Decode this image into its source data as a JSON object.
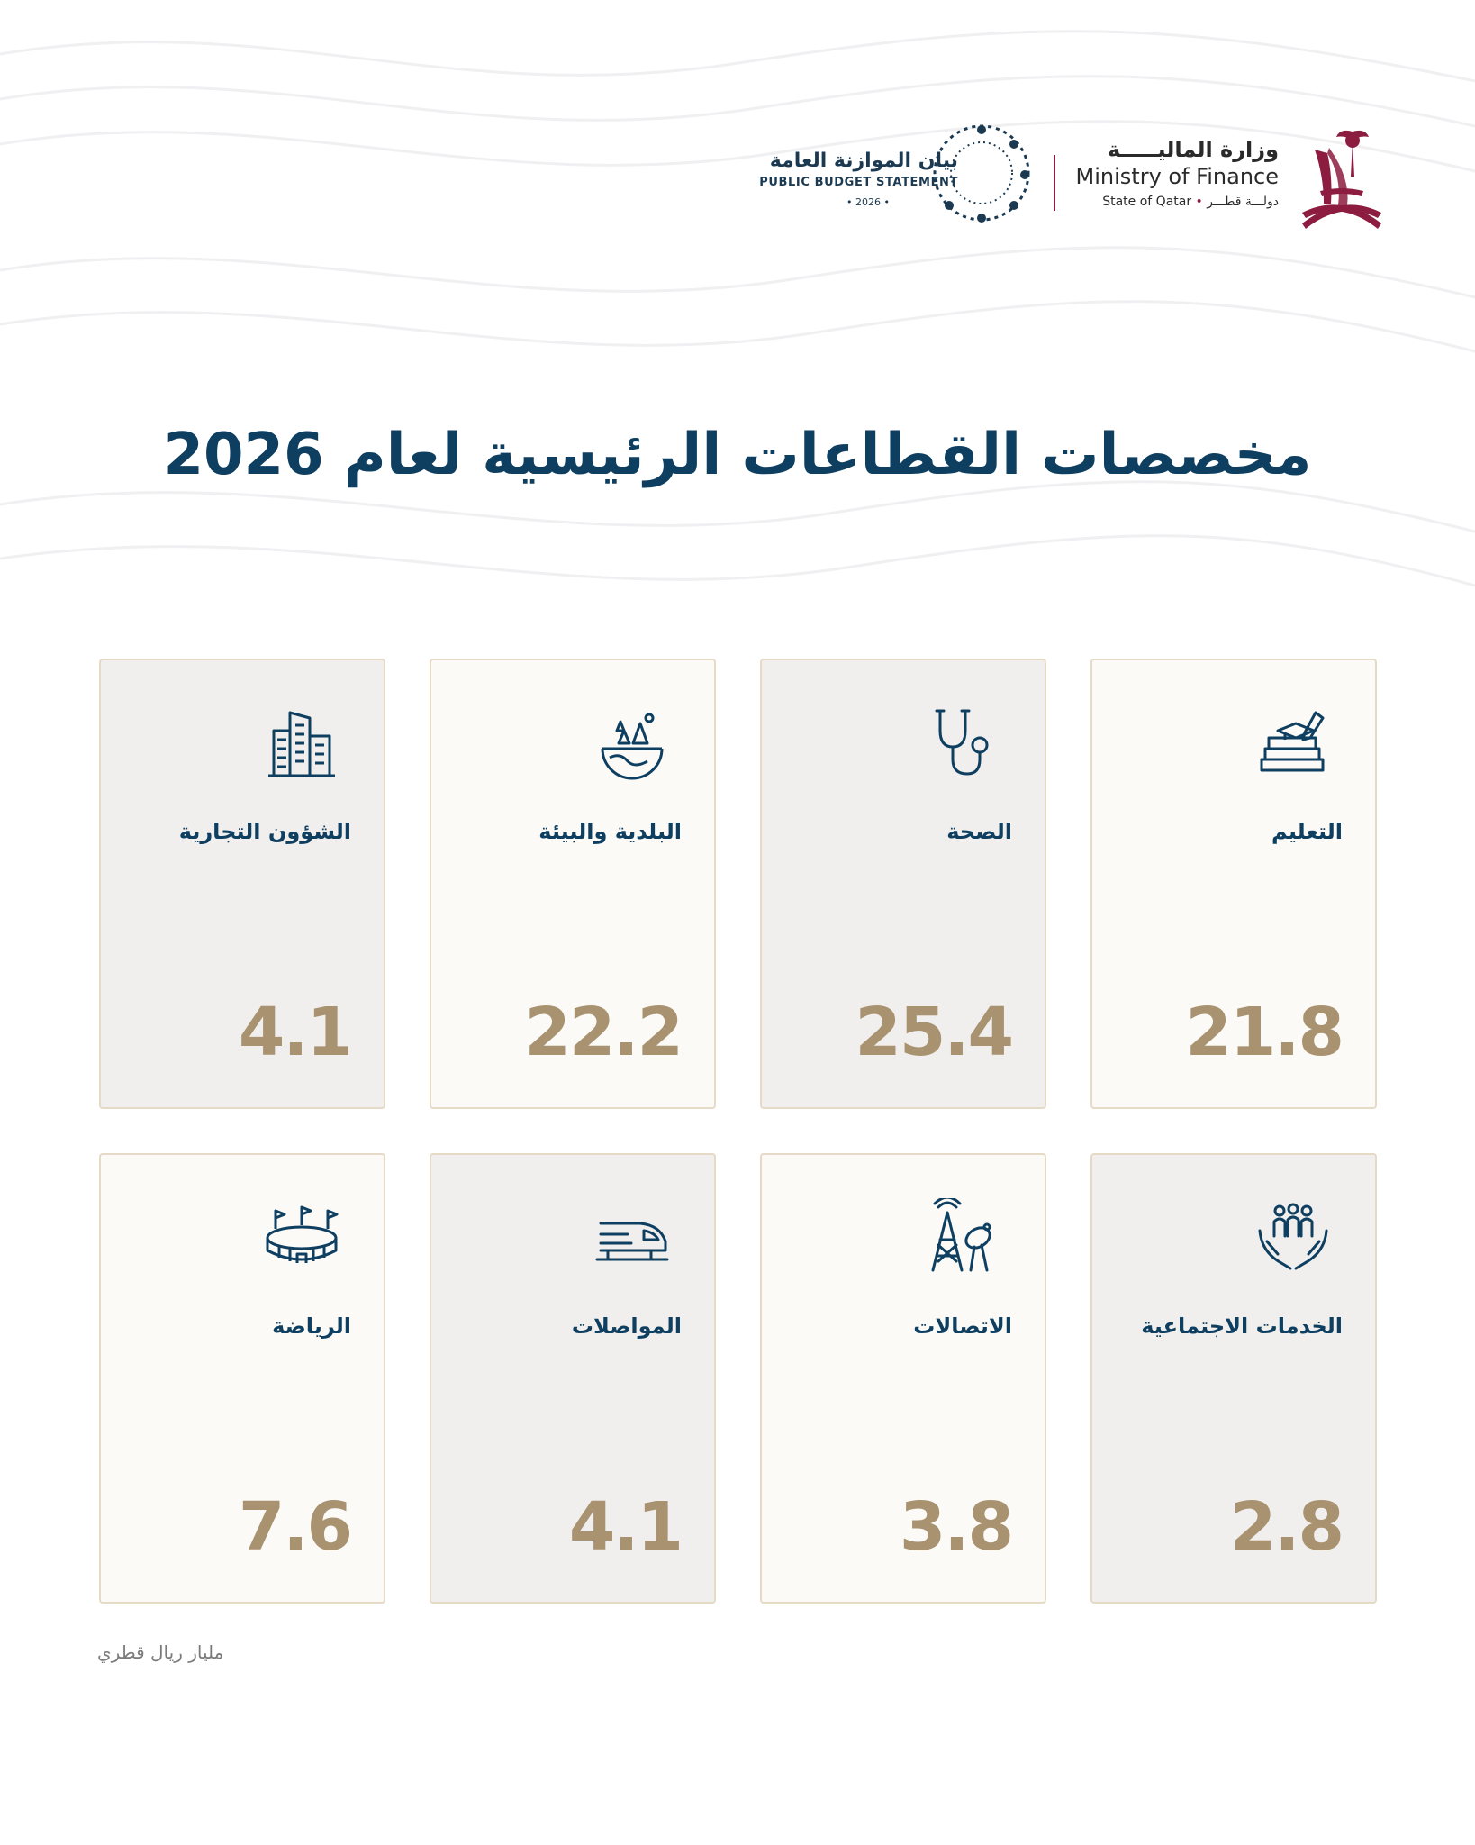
{
  "header": {
    "ministry": {
      "name_ar": "وزارة الماليـــــة",
      "name_en": "Ministry of Finance",
      "state_en": "State of Qatar",
      "state_ar": "دولـــة قطـــر"
    },
    "budget": {
      "name_ar": "بيان الموازنة العامة",
      "name_en": "PUBLIC BUDGET STATEMENT",
      "year": "• 2026 •"
    }
  },
  "title": "مخصصات القطاعات الرئيسية لعام 2026",
  "sectors": [
    {
      "label": "التعليم",
      "value": "21.8",
      "icon": "education-icon"
    },
    {
      "label": "الصحة",
      "value": "25.4",
      "icon": "stethoscope-icon"
    },
    {
      "label": "البلدية والبيئة",
      "value": "22.2",
      "icon": "globe-trees-icon"
    },
    {
      "label": "الشؤون التجارية",
      "value": "4.1",
      "icon": "buildings-icon"
    },
    {
      "label": "الخدمات الاجتماعية",
      "value": "2.8",
      "icon": "community-hands-icon"
    },
    {
      "label": "الاتصالات",
      "value": "3.8",
      "icon": "antenna-tower-icon"
    },
    {
      "label": "المواصلات",
      "value": "4.1",
      "icon": "train-icon"
    },
    {
      "label": "الرياضة",
      "value": "7.6",
      "icon": "stadium-icon"
    }
  ],
  "unit_note": "مليار ريال قطري",
  "colors": {
    "title": "#0f3f60",
    "value": "#a89270",
    "border": "#e5dac6",
    "accent": "#8c1d40"
  }
}
